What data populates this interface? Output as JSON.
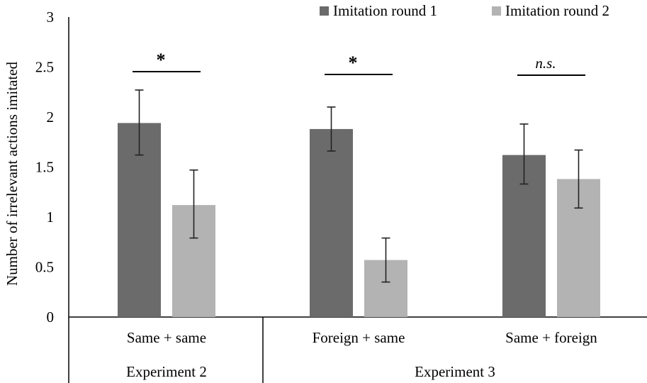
{
  "chart_data": {
    "type": "bar",
    "title": "",
    "xlabel": "",
    "ylabel": "Number of irrelevant actions imitated",
    "ylim": [
      0,
      3
    ],
    "yticks": [
      0,
      0.5,
      1,
      1.5,
      2,
      2.5,
      3
    ],
    "ytick_labels": [
      "0",
      "0.5",
      "1",
      "1.5",
      "2",
      "2.5",
      "3"
    ],
    "grid": false,
    "legend_position": "top-right",
    "categories": [
      "Same + same",
      "Foreign + same",
      "Same + foreign"
    ],
    "groups": [
      {
        "label": "Experiment 2",
        "categories": [
          "Same + same"
        ]
      },
      {
        "label": "Experiment 3",
        "categories": [
          "Foreign + same",
          "Same + foreign"
        ]
      }
    ],
    "series": [
      {
        "name": "Imitation round 1",
        "color": "#6b6b6b",
        "values": [
          1.94,
          1.88,
          1.62
        ],
        "error_low": [
          1.62,
          1.66,
          1.33
        ],
        "error_high": [
          2.27,
          2.1,
          1.93
        ]
      },
      {
        "name": "Imitation round 2",
        "color": "#b3b3b3",
        "values": [
          1.12,
          0.57,
          1.38
        ],
        "error_low": [
          0.79,
          0.35,
          1.09
        ],
        "error_high": [
          1.47,
          0.79,
          1.67
        ]
      }
    ],
    "significance": [
      "*",
      "*",
      "n.s."
    ]
  }
}
